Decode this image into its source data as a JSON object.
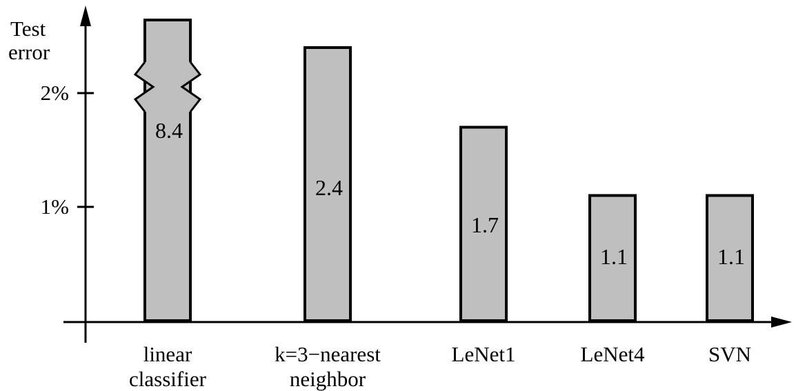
{
  "chart_data": {
    "type": "bar",
    "ylabel": [
      "Test",
      "error"
    ],
    "yunit": "%",
    "ylim": [
      0,
      2.6
    ],
    "yticks": [
      {
        "value": 1,
        "label": "1%"
      },
      {
        "value": 2,
        "label": "2%"
      }
    ],
    "axis_break": {
      "category_index": 0
    },
    "bars": [
      {
        "label_lines": [
          "linear",
          "classifier"
        ],
        "value": 8.4,
        "value_label": "8.4"
      },
      {
        "label_lines": [
          "k=3−nearest",
          "neighbor"
        ],
        "value": 2.4,
        "value_label": "2.4"
      },
      {
        "label_lines": [
          "LeNet1"
        ],
        "value": 1.7,
        "value_label": "1.7"
      },
      {
        "label_lines": [
          "LeNet4"
        ],
        "value": 1.1,
        "value_label": "1.1"
      },
      {
        "label_lines": [
          "SVN"
        ],
        "value": 1.1,
        "value_label": "1.1"
      }
    ],
    "grid": false,
    "legend": "none"
  }
}
